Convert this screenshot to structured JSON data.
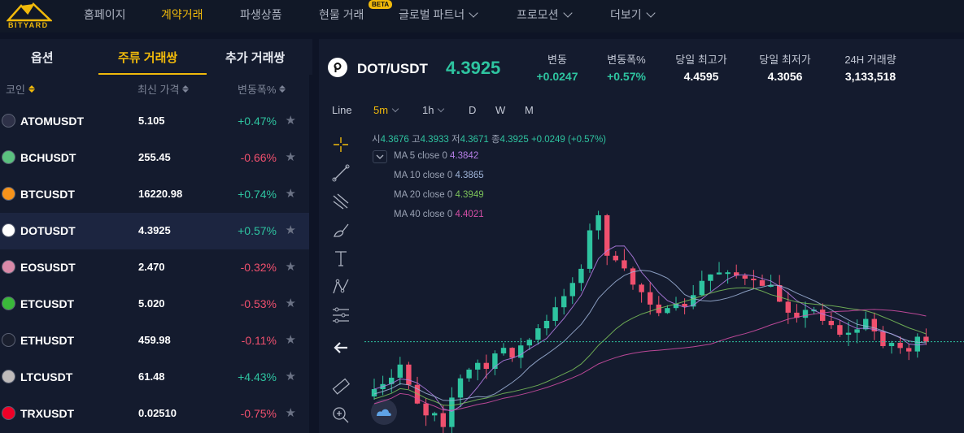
{
  "brand": {
    "name": "BITYARD",
    "accent": "#f0b90b"
  },
  "nav": {
    "home": "홈페이지",
    "contract": "계약거래",
    "derivatives": "파생상품",
    "spot": "현물 거래",
    "spot_badge": "BETA",
    "partner": "글로벌 파트너",
    "promo": "프로모션",
    "more": "더보기"
  },
  "left": {
    "tabs": {
      "options": "옵션",
      "main": "주류 거래쌍",
      "added": "추가 거래쌍"
    },
    "columns": {
      "coin": "코인",
      "price": "최신 가격",
      "change": "변동폭%"
    },
    "rows": [
      {
        "symbol": "ATOMUSDT",
        "price": "5.105",
        "change": "+0.47%",
        "dir": "up",
        "icon": "atom-icon",
        "color": "#2e3148"
      },
      {
        "symbol": "BCHUSDT",
        "price": "255.45",
        "change": "-0.66%",
        "dir": "down",
        "icon": "bch-icon",
        "color": "#5bc17f"
      },
      {
        "symbol": "BTCUSDT",
        "price": "16220.98",
        "change": "+0.74%",
        "dir": "up",
        "icon": "btc-icon",
        "color": "#f7931a"
      },
      {
        "symbol": "DOTUSDT",
        "price": "4.3925",
        "change": "+0.57%",
        "dir": "up",
        "icon": "dot-icon",
        "color": "#ffffff"
      },
      {
        "symbol": "EOSUSDT",
        "price": "2.470",
        "change": "-0.32%",
        "dir": "down",
        "icon": "eos-icon",
        "color": "#d98aa8"
      },
      {
        "symbol": "ETCUSDT",
        "price": "5.020",
        "change": "-0.53%",
        "dir": "down",
        "icon": "etc-icon",
        "color": "#3ab83a"
      },
      {
        "symbol": "ETHUSDT",
        "price": "459.98",
        "change": "-0.11%",
        "dir": "down",
        "icon": "eth-icon",
        "color": "#1a1f2e"
      },
      {
        "symbol": "LTCUSDT",
        "price": "61.48",
        "change": "+4.43%",
        "dir": "up",
        "icon": "ltc-icon",
        "color": "#bfbbbb"
      },
      {
        "symbol": "TRXUSDT",
        "price": "0.02510",
        "change": "-0.75%",
        "dir": "down",
        "icon": "trx-icon",
        "color": "#ef0027"
      }
    ]
  },
  "ticker": {
    "pair": "DOT/USDT",
    "last": "4.3925",
    "change_label": "변동",
    "change": "+0.0247",
    "pct_label": "변동폭%",
    "pct": "+0.57%",
    "high_label": "당일 최고가",
    "high": "4.4595",
    "low_label": "당일 최저가",
    "low": "4.3056",
    "vol_label": "24H 거래량",
    "vol": "3,133,518"
  },
  "timeframes": {
    "line": "Line",
    "m5": "5m",
    "h1": "1h",
    "d": "D",
    "w": "W",
    "m": "M"
  },
  "ohlc": {
    "o_label": "시",
    "o": "4.3676",
    "h_label": "고",
    "h": "4.3933",
    "l_label": "저",
    "l": "4.3671",
    "c_label": "종",
    "c": "4.3925",
    "chg": "+0.0249 (+0.57%)"
  },
  "ma": [
    {
      "label": "MA 5 close 0",
      "value": "4.3842",
      "color": "#b47ee5"
    },
    {
      "label": "MA 10 close 0",
      "value": "4.3865",
      "color": "#9fb4d9"
    },
    {
      "label": "MA 20 close 0",
      "value": "4.3949",
      "color": "#7bc25a"
    },
    {
      "label": "MA 40 close 0",
      "value": "4.4021",
      "color": "#d64fa8"
    }
  ],
  "colors": {
    "up": "#2ec4a0",
    "down": "#f0506e"
  }
}
